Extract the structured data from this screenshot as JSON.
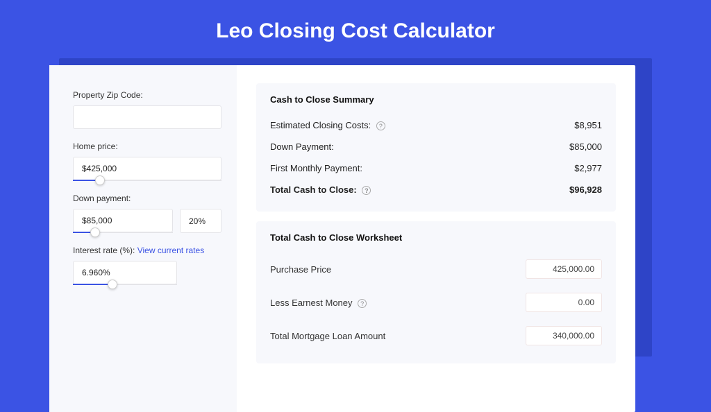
{
  "title": "Leo Closing Cost Calculator",
  "sidebar": {
    "zip_label": "Property Zip Code:",
    "zip_value": "",
    "home_price_label": "Home price:",
    "home_price_value": "$425,000",
    "home_price_slider_pct": 18,
    "down_payment_label": "Down payment:",
    "down_payment_value": "$85,000",
    "down_payment_pct": "20%",
    "down_payment_slider_pct": 22,
    "interest_label": "Interest rate (%): ",
    "interest_link": "View current rates",
    "interest_value": "6.960%",
    "interest_slider_pct": 38
  },
  "summary": {
    "title": "Cash to Close Summary",
    "rows": [
      {
        "label": "Estimated Closing Costs:",
        "has_help": true,
        "value": "$8,951",
        "bold": false
      },
      {
        "label": "Down Payment:",
        "has_help": false,
        "value": "$85,000",
        "bold": false
      },
      {
        "label": "First Monthly Payment:",
        "has_help": false,
        "value": "$2,977",
        "bold": false
      },
      {
        "label": "Total Cash to Close:",
        "has_help": true,
        "value": "$96,928",
        "bold": true
      }
    ]
  },
  "worksheet": {
    "title": "Total Cash to Close Worksheet",
    "rows": [
      {
        "label": "Purchase Price",
        "has_help": false,
        "value": "425,000.00"
      },
      {
        "label": "Less Earnest Money",
        "has_help": true,
        "value": "0.00"
      },
      {
        "label": "Total Mortgage Loan Amount",
        "has_help": false,
        "value": "340,000.00"
      }
    ]
  },
  "colors": {
    "bg": "#3b53e4",
    "shadow": "#2e44c7",
    "panel": "#f7f8fc",
    "accent": "#3b53e4"
  }
}
